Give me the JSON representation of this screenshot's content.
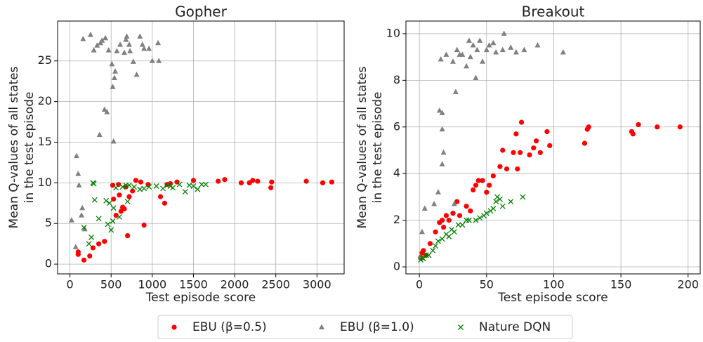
{
  "chart_data": [
    {
      "type": "scatter",
      "title": "Gopher",
      "xlabel": "Test episode score",
      "ylabel": [
        "Mean Q-values of all states",
        "in the test episode"
      ],
      "xlim": [
        -150,
        3330
      ],
      "ylim": [
        -1.2,
        29.9
      ],
      "xticks": [
        0,
        500,
        1000,
        1500,
        2000,
        2500,
        3000
      ],
      "yticks": [
        0,
        5,
        10,
        15,
        20,
        25
      ],
      "grid": true,
      "series": [
        {
          "name": "EBU (β=0.5)",
          "color": "#ff0000",
          "marker": "circle",
          "x": [
            100,
            100,
            170,
            240,
            280,
            350,
            420,
            520,
            530,
            560,
            590,
            620,
            640,
            660,
            680,
            700,
            720,
            800,
            860,
            900,
            950,
            1100,
            1150,
            1180,
            1220,
            1300,
            1500,
            1800,
            1880,
            2080,
            2180,
            2220,
            2280,
            2440,
            2450,
            2870,
            3070,
            3180,
            600,
            760
          ],
          "y": [
            1.5,
            1.2,
            0.5,
            1.0,
            2.0,
            2.5,
            2.8,
            9.7,
            8.0,
            6.0,
            9.8,
            6.5,
            7.0,
            6.8,
            9.5,
            3.5,
            8.3,
            10.3,
            10.1,
            4.8,
            9.8,
            8.3,
            7.5,
            9.8,
            9.9,
            10.1,
            10.3,
            10.2,
            10.4,
            10.0,
            10.0,
            10.3,
            10.2,
            9.4,
            10.1,
            10.2,
            10.0,
            10.1,
            8.5,
            9.0
          ]
        },
        {
          "name": "EBU (β=1.0)",
          "color": "#808080",
          "marker": "triangle",
          "x": [
            20,
            70,
            80,
            100,
            110,
            140,
            150,
            160,
            180,
            250,
            290,
            330,
            360,
            370,
            390,
            420,
            430,
            450,
            470,
            510,
            520,
            530,
            540,
            550,
            570,
            610,
            660,
            690,
            720,
            730,
            770,
            810,
            850,
            880,
            900,
            960,
            1000,
            1070,
            1080,
            680
          ],
          "y": [
            5.4,
            2.1,
            13.3,
            11.1,
            9.7,
            6.0,
            6.9,
            27.7,
            4.3,
            28.2,
            26.3,
            26.9,
            15.9,
            27.2,
            27.5,
            19.0,
            27.8,
            18.7,
            26.3,
            24.6,
            21.8,
            15.1,
            22.9,
            23.7,
            26.2,
            27.0,
            26.0,
            28.0,
            27.0,
            26.2,
            24.9,
            23.3,
            28.0,
            27.0,
            26.5,
            26.5,
            25.0,
            27.2,
            25.0,
            27.6
          ]
        },
        {
          "name": "Nature DQN",
          "color": "#008000",
          "marker": "x",
          "x": [
            170,
            230,
            260,
            280,
            290,
            300,
            350,
            440,
            460,
            480,
            500,
            520,
            530,
            560,
            600,
            640,
            680,
            700,
            720,
            780,
            850,
            900,
            960,
            1050,
            1130,
            1180,
            1250,
            1330,
            1400,
            1450,
            1550,
            1600,
            1650,
            1500,
            1220
          ],
          "y": [
            4.5,
            2.5,
            3.3,
            10.0,
            9.9,
            7.9,
            5.6,
            7.8,
            4.9,
            7.5,
            4.2,
            5.3,
            6.9,
            9.4,
            5.8,
            9.5,
            9.7,
            7.7,
            9.7,
            9.5,
            9.2,
            9.3,
            9.5,
            9.6,
            9.3,
            9.7,
            9.4,
            9.8,
            8.9,
            9.7,
            9.2,
            9.8,
            9.8,
            9.6,
            9.6
          ]
        }
      ]
    },
    {
      "type": "scatter",
      "title": "Breakout",
      "xlabel": "Test episode score",
      "ylabel": [
        "Mean Q-values of all states",
        "in the test episode"
      ],
      "xlim": [
        -10,
        209
      ],
      "ylim": [
        -0.3,
        10.54
      ],
      "xticks": [
        0,
        50,
        100,
        150,
        200
      ],
      "yticks": [
        0,
        2,
        4,
        6,
        8,
        10
      ],
      "grid": true,
      "series": [
        {
          "name": "EBU (β=0.5)",
          "color": "#ff0000",
          "marker": "circle",
          "x": [
            1,
            2,
            3,
            5,
            8,
            12,
            15,
            17,
            18,
            20,
            22,
            25,
            28,
            30,
            35,
            38,
            40,
            42,
            44,
            47,
            50,
            52,
            55,
            60,
            62,
            65,
            70,
            72,
            73,
            75,
            76,
            82,
            85,
            87,
            90,
            95,
            97,
            123,
            125,
            126,
            158,
            159,
            163,
            177,
            194
          ],
          "y": [
            0.4,
            0.6,
            0.7,
            0.5,
            1.0,
            1.5,
            1.9,
            2.0,
            1.7,
            2.2,
            2.0,
            2.3,
            2.8,
            2.2,
            2.6,
            2.4,
            3.3,
            3.5,
            3.7,
            3.7,
            3.2,
            3.5,
            3.9,
            4.3,
            5.0,
            4.2,
            4.9,
            5.7,
            4.2,
            4.9,
            6.2,
            4.8,
            5.1,
            5.4,
            4.9,
            5.8,
            5.2,
            5.3,
            5.9,
            6.0,
            5.8,
            5.7,
            6.1,
            6.0,
            6.0
          ]
        },
        {
          "name": "EBU (β=1.0)",
          "color": "#808080",
          "marker": "triangle",
          "x": [
            1,
            2,
            4,
            15,
            16,
            17,
            17,
            17,
            18,
            20,
            25,
            26,
            27,
            28,
            30,
            32,
            35,
            37,
            38,
            40,
            42,
            43,
            45,
            47,
            50,
            52,
            55,
            57,
            62,
            63,
            68,
            72,
            78,
            88,
            107,
            14,
            11
          ],
          "y": [
            0.4,
            1.5,
            2.5,
            6.7,
            8.9,
            6.6,
            5.9,
            4.4,
            4.9,
            9.1,
            8.8,
            2.7,
            7.5,
            9.3,
            9.1,
            9.1,
            8.6,
            9.7,
            9.0,
            9.5,
            8.1,
            9.3,
            9.7,
            8.8,
            9.3,
            9.5,
            9.6,
            9.2,
            9.3,
            10.0,
            9.4,
            9.2,
            9.3,
            9.5,
            9.2,
            3.2,
            2.7
          ]
        },
        {
          "name": "Nature DQN",
          "color": "#008000",
          "marker": "x",
          "x": [
            1,
            2,
            3,
            5,
            7,
            10,
            12,
            14,
            17,
            20,
            22,
            24,
            26,
            29,
            32,
            35,
            37,
            42,
            48,
            50,
            53,
            55,
            57,
            58,
            60,
            62,
            68,
            77,
            45
          ],
          "y": [
            0.3,
            0.4,
            0.35,
            0.5,
            0.5,
            0.7,
            0.9,
            1.1,
            1.2,
            1.4,
            1.3,
            1.6,
            1.5,
            1.8,
            1.8,
            2.0,
            2.0,
            2.0,
            2.2,
            2.3,
            2.4,
            2.5,
            2.8,
            3.0,
            2.9,
            2.6,
            2.8,
            3.0,
            2.1
          ]
        }
      ]
    }
  ]
}
